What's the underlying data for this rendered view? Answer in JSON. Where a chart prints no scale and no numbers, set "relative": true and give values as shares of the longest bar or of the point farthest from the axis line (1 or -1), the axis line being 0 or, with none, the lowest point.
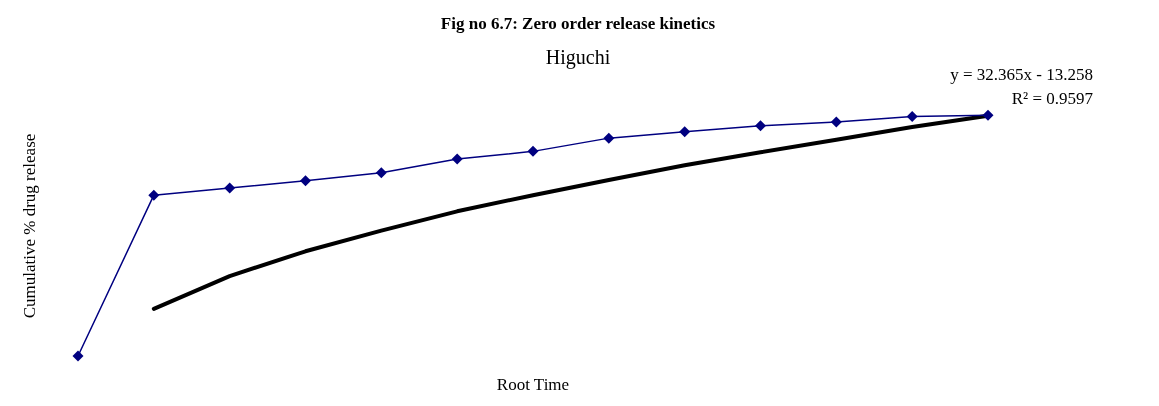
{
  "chart_data": {
    "type": "line",
    "title": "Fig no 6.7: Zero order release kinetics",
    "subtitle": "Higuchi",
    "xlabel": "Root Time",
    "ylabel": "Cumulative % drug release",
    "relative": true,
    "grid": false,
    "categories": [
      null,
      null,
      null,
      null,
      null,
      null,
      null,
      null,
      null,
      null,
      null,
      null,
      null
    ],
    "annotations": [
      "y = 32.365x - 13.258",
      "R² = 0.9597"
    ],
    "series": [
      {
        "color": "#000080",
        "marker": "diamond",
        "line_style": "solid",
        "values": [
          0,
          0.668,
          0.698,
          0.728,
          0.761,
          0.818,
          0.85,
          0.905,
          0.931,
          0.956,
          0.972,
          0.995,
          1
        ]
      },
      {
        "type": "line",
        "color": "#000000",
        "marker": "none",
        "line_style": "solid",
        "values": [
          null,
          0.196,
          0.332,
          0.435,
          0.521,
          0.601,
          0.668,
          0.731,
          0.792,
          0.846,
          0.898,
          0.951,
          0.998
        ]
      }
    ]
  }
}
